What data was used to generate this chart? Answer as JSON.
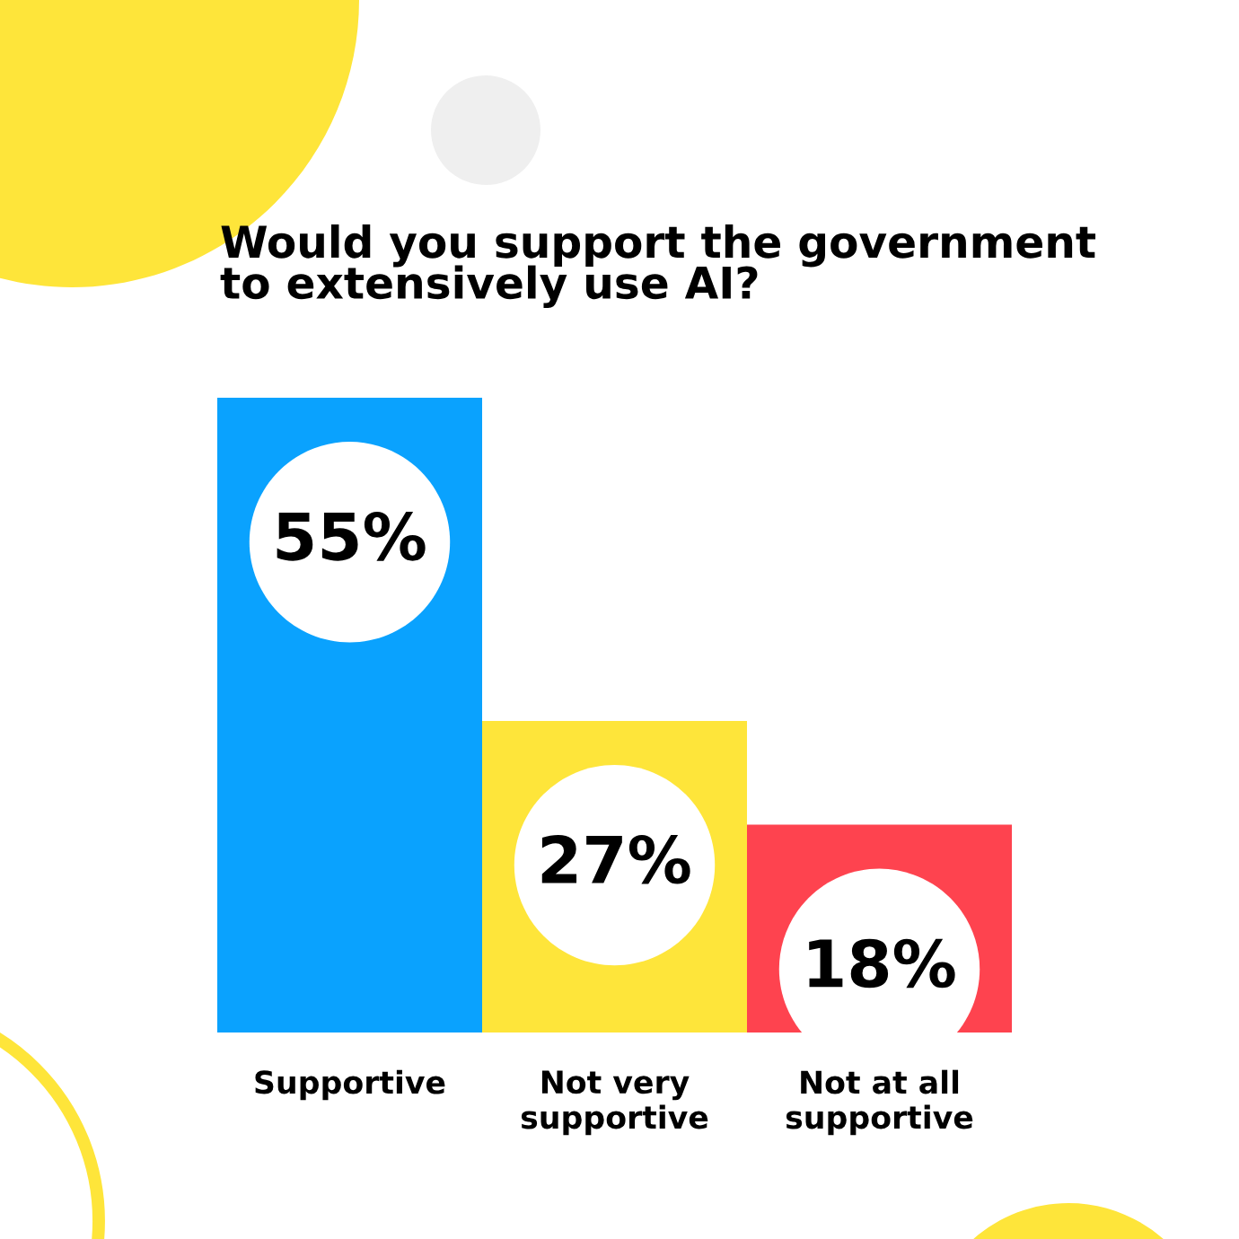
{
  "chart_data": {
    "type": "bar",
    "title": "Would you support the government\nto extensively use AI?",
    "categories": [
      "Supportive",
      "Not very\nsupportive",
      "Not at all\nsupportive"
    ],
    "values": [
      55,
      27,
      18
    ],
    "colors": [
      "#0aa2fe",
      "#fee53a",
      "#fe434f"
    ],
    "value_labels": [
      "55%",
      "27%",
      "18%"
    ],
    "grid": false,
    "legend": false
  }
}
